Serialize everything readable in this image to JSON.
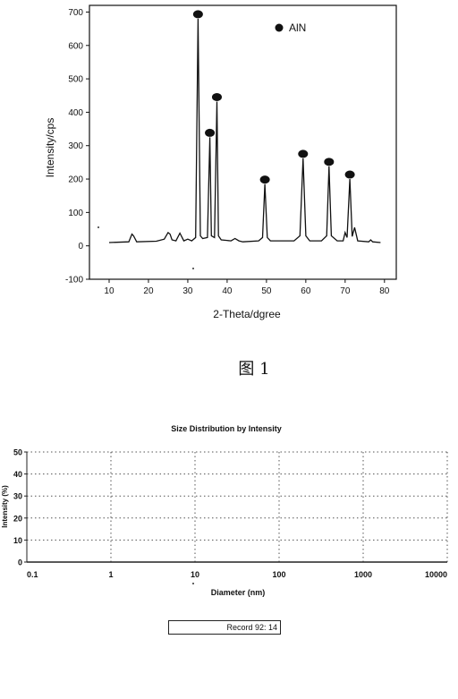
{
  "figure1_caption": "图 1",
  "chart_data": [
    {
      "type": "line",
      "title": "",
      "xlabel": "2-Theta/dgree",
      "ylabel": "Intensity/cps",
      "xlim": [
        5,
        83
      ],
      "ylim": [
        -100,
        720
      ],
      "xticks": [
        10,
        20,
        30,
        40,
        50,
        60,
        70,
        80
      ],
      "yticks": [
        -100,
        0,
        100,
        200,
        300,
        400,
        500,
        600,
        700
      ],
      "grid": false,
      "legend": {
        "position": "top-right",
        "entries": [
          "AlN"
        ]
      },
      "series": [
        {
          "x": [
            10,
            15,
            15.8,
            16.2,
            17,
            22,
            24,
            25,
            25.5,
            26,
            27,
            28,
            29,
            30,
            31,
            32,
            32.6,
            33.2,
            33.8,
            35,
            35.6,
            36,
            36.8,
            37.4,
            37.8,
            38.5,
            41,
            42,
            43,
            44,
            48,
            49,
            49.6,
            50.2,
            51,
            57,
            58.5,
            59.3,
            60,
            61,
            64,
            65.3,
            65.9,
            66.5,
            68,
            69.5,
            70,
            70.5,
            71.2,
            71.8,
            72.4,
            73.2,
            76,
            76.5,
            77,
            79
          ],
          "y": [
            10,
            12,
            35,
            30,
            12,
            14,
            20,
            40,
            35,
            18,
            15,
            38,
            15,
            20,
            15,
            25,
            680,
            30,
            22,
            25,
            325,
            30,
            25,
            432,
            30,
            18,
            15,
            22,
            15,
            12,
            15,
            25,
            185,
            25,
            15,
            15,
            30,
            262,
            30,
            15,
            15,
            30,
            238,
            30,
            15,
            15,
            40,
            25,
            200,
            28,
            55,
            15,
            12,
            18,
            12,
            10
          ]
        }
      ],
      "markers": [
        {
          "x": 32.6,
          "y": 680
        },
        {
          "x": 35.6,
          "y": 325
        },
        {
          "x": 37.4,
          "y": 432
        },
        {
          "x": 49.6,
          "y": 185
        },
        {
          "x": 59.3,
          "y": 262
        },
        {
          "x": 65.9,
          "y": 238
        },
        {
          "x": 71.2,
          "y": 200
        }
      ]
    },
    {
      "type": "line",
      "title": "Size Distribution by Intensity",
      "xlabel": "Diameter (nm)",
      "ylabel": "Intensity (%)",
      "x_scale": "log",
      "xlim": [
        0.1,
        10000
      ],
      "ylim": [
        0,
        50
      ],
      "xticks": [
        0.1,
        1,
        10,
        100,
        1000,
        10000
      ],
      "yticks": [
        0,
        10,
        20,
        30,
        40,
        50
      ],
      "grid": true,
      "series": [
        {
          "x": [
            0.1,
            0.3,
            1,
            3,
            10,
            30,
            100,
            200,
            300,
            1000,
            3000,
            10000
          ],
          "y": [
            0,
            0,
            0,
            0,
            0,
            0,
            0,
            0,
            0,
            0,
            0,
            0
          ]
        }
      ]
    }
  ],
  "record_label": "Record 92: 14"
}
